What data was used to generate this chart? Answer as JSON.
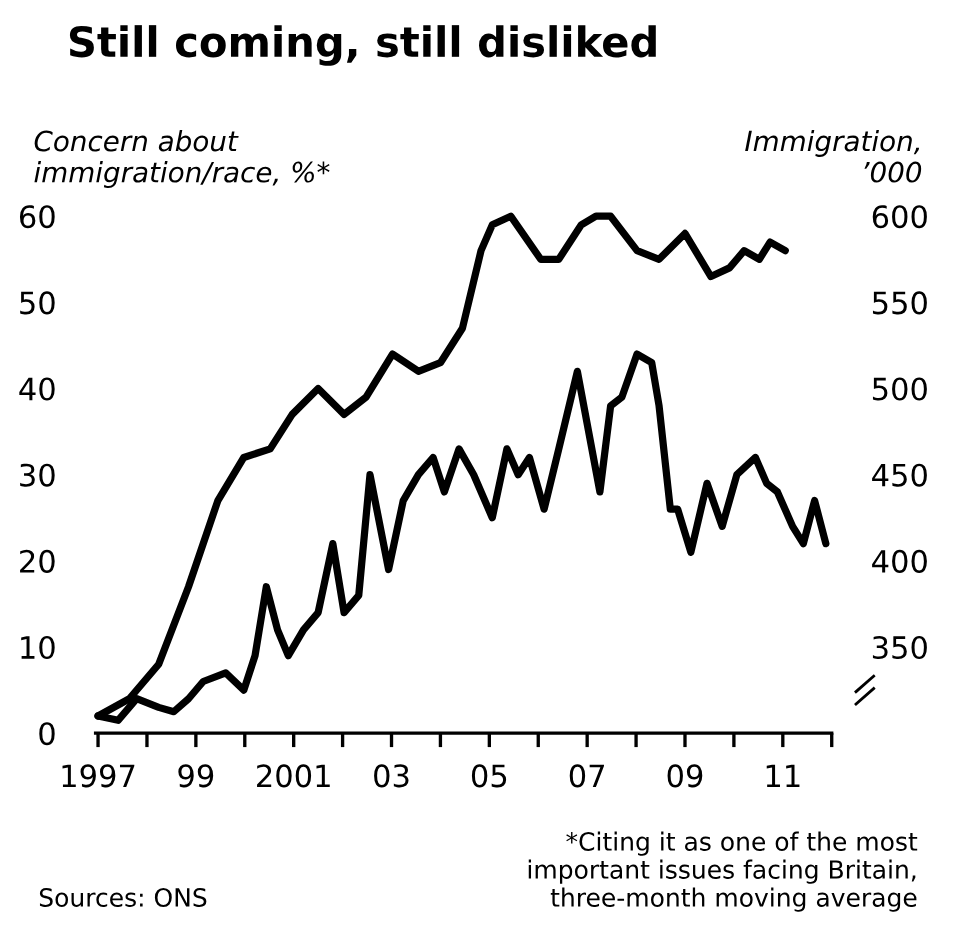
{
  "chart_data": {
    "type": "line",
    "title": "Still coming, still disliked",
    "ylabel": "Concern about\nimmigration/race, %*",
    "y2label": "Immigration,\n’000",
    "x": [
      1997.0,
      1997.41,
      1997.79,
      1998.24,
      1998.55,
      1998.85,
      1999.15,
      1999.61,
      1999.98,
      2000.21,
      2000.44,
      2000.67,
      2000.89,
      2001.2,
      2001.5,
      2001.8,
      2002.03,
      2002.33,
      2002.56,
      2002.94,
      2003.24,
      2003.55,
      2003.85,
      2004.08,
      2004.38,
      2004.68,
      2005.06,
      2005.36,
      2005.59,
      2005.82,
      2006.12,
      2006.42,
      2006.8,
      2007.03,
      2007.26,
      2007.48,
      2007.71,
      2008.02,
      2008.32,
      2008.47,
      2008.7,
      2008.85,
      2009.12,
      2009.45,
      2009.76,
      2010.06,
      2010.44,
      2010.67,
      2010.89,
      2011.2,
      2011.42,
      2011.65,
      2011.88
    ],
    "series": [
      {
        "color": "#000000",
        "values": [
          2,
          1.5,
          4,
          3,
          2.5,
          4,
          6,
          7,
          5,
          9,
          17,
          12,
          9,
          12,
          14,
          22,
          14,
          16,
          30,
          19,
          27,
          30,
          32,
          28,
          33,
          30,
          25,
          33,
          30,
          32,
          26,
          33,
          42,
          35,
          28,
          38,
          39,
          44,
          43,
          38,
          26,
          26,
          21,
          29,
          24,
          30,
          32,
          29,
          28,
          24,
          22,
          27,
          22
        ]
      },
      {
        "color": "#000000",
        "axis": "y2",
        "x": [
          1997.0,
          1997.64,
          1998.24,
          1998.85,
          1999.45,
          1999.98,
          2000.52,
          2000.97,
          2001.5,
          2002.03,
          2002.48,
          2003.02,
          2003.55,
          2004.0,
          2004.45,
          2004.83,
          2005.06,
          2005.44,
          2006.05,
          2006.42,
          2006.88,
          2007.18,
          2007.48,
          2008.02,
          2008.47,
          2009.0,
          2009.53,
          2009.91,
          2010.21,
          2010.52,
          2010.74,
          2011.05
        ],
        "values": [
          310,
          320,
          340,
          385,
          435,
          460,
          465,
          485,
          500,
          485,
          495,
          520,
          510,
          515,
          535,
          580,
          595,
          600,
          575,
          575,
          595,
          600,
          600,
          580,
          575,
          590,
          565,
          570,
          580,
          575,
          585,
          580
        ]
      }
    ],
    "xlim": [
      1996.95,
      2012.0
    ],
    "xticks": [
      1997,
      {
        "value": 1998,
        "label": null
      },
      {
        "value": 1999,
        "label": "99"
      },
      {
        "value": 2000,
        "label": null
      },
      2001,
      {
        "value": 2002,
        "label": null
      },
      {
        "value": 2003,
        "label": "03"
      },
      {
        "value": 2004,
        "label": null
      },
      {
        "value": 2005,
        "label": "05"
      },
      {
        "value": 2006,
        "label": null
      },
      {
        "value": 2007,
        "label": "07"
      },
      {
        "value": 2008,
        "label": null
      },
      {
        "value": 2009,
        "label": "09"
      },
      {
        "value": 2010,
        "label": null
      },
      {
        "value": 2011,
        "label": "11"
      },
      {
        "value": 2012,
        "label": null
      }
    ],
    "ylim": [
      0,
      60
    ],
    "yticks": [
      0,
      10,
      20,
      30,
      40,
      50,
      60
    ],
    "y2lim": [
      300,
      600
    ],
    "y2ticks": [
      350,
      400,
      450,
      500,
      550,
      600
    ],
    "grid": false,
    "legend": false,
    "marker": "none",
    "line_style": "solid",
    "annotations": [
      "Sources: ONS",
      "*Citing it as one of the most\nimportant issues facing Britain,\nthree-month moving average"
    ]
  }
}
